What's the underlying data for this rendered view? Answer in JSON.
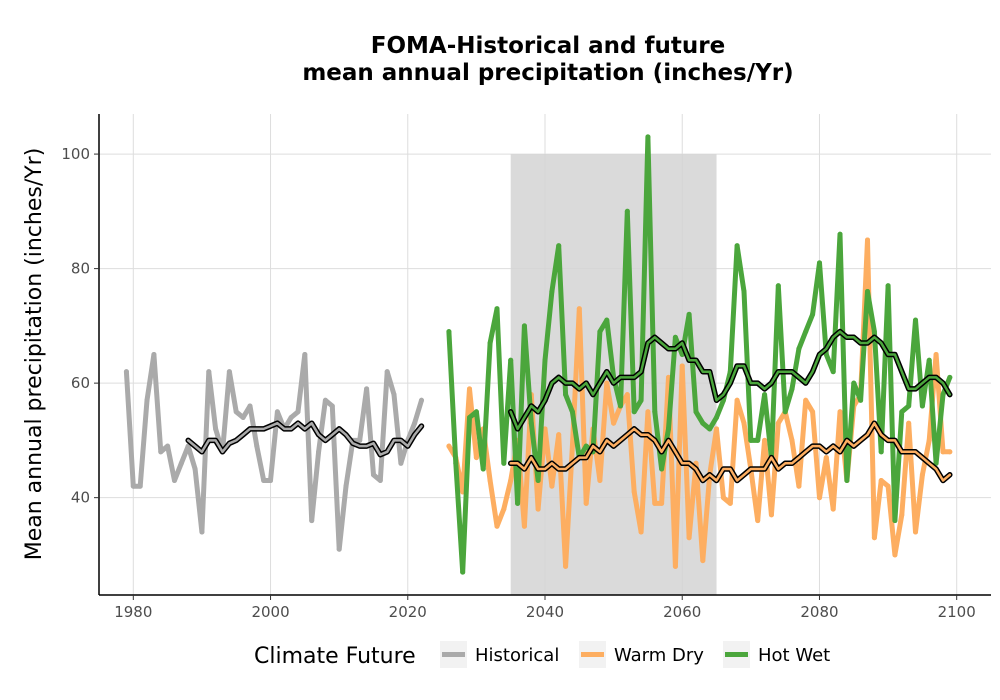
{
  "chart_data": {
    "type": "line",
    "title_line1": "FOMA-Historical and future",
    "title_line2": "mean annual precipitation (inches/Yr)",
    "xlabel": "",
    "ylabel": "Mean annual precipitation (inches/Yr)",
    "xlim": [
      1975,
      2105
    ],
    "ylim": [
      23,
      107
    ],
    "x_ticks": [
      1980,
      2000,
      2020,
      2040,
      2060,
      2080,
      2100
    ],
    "y_ticks": [
      40,
      60,
      80,
      100
    ],
    "grid": true,
    "shaded_period": [
      2035,
      2065
    ],
    "shaded_period_y": [
      23,
      100
    ],
    "legend": {
      "title": "Climate Future",
      "placement": "bottom",
      "entries": [
        {
          "label": "Historical",
          "color": "#aaaaaa"
        },
        {
          "label": "Warm Dry",
          "color": "#fdae61"
        },
        {
          "label": "Hot Wet",
          "color": "#4ba63c"
        }
      ]
    },
    "series": [
      {
        "name": "Historical",
        "color": "#aaaaaa",
        "x": [
          1979,
          1980,
          1981,
          1982,
          1983,
          1984,
          1985,
          1986,
          1987,
          1988,
          1989,
          1990,
          1991,
          1992,
          1993,
          1994,
          1995,
          1996,
          1997,
          1998,
          1999,
          2000,
          2001,
          2002,
          2003,
          2004,
          2005,
          2006,
          2007,
          2008,
          2009,
          2010,
          2011,
          2012,
          2013,
          2014,
          2015,
          2016,
          2017,
          2018,
          2019,
          2020,
          2021,
          2022
        ],
        "values": [
          62,
          42,
          42,
          57,
          65,
          48,
          49,
          43,
          46,
          49,
          45,
          34,
          62,
          52,
          48,
          62,
          55,
          54,
          56,
          49,
          43,
          43,
          55,
          52,
          54,
          55,
          65,
          36,
          48,
          57,
          56,
          31,
          42,
          50,
          50,
          59,
          44,
          43,
          62,
          58,
          46,
          50,
          53,
          57
        ],
        "smooth_x": [
          1988,
          1989,
          1990,
          1991,
          1992,
          1993,
          1994,
          1995,
          1996,
          1997,
          1998,
          1999,
          2000,
          2001,
          2002,
          2003,
          2004,
          2005,
          2006,
          2007,
          2008,
          2009,
          2010,
          2011,
          2012,
          2013,
          2014,
          2015,
          2016,
          2017,
          2018,
          2019,
          2020,
          2021,
          2022
        ],
        "smooth_values": [
          50,
          49,
          48,
          50,
          50,
          48,
          49.5,
          50,
          51,
          52,
          52,
          52,
          52.5,
          53,
          52,
          52,
          53,
          52,
          53,
          51,
          50,
          51,
          52,
          51,
          49.5,
          49,
          49,
          49.5,
          47.5,
          48,
          50,
          50,
          49,
          51,
          52.5
        ]
      },
      {
        "name": "Warm Dry",
        "color": "#fdae61",
        "x": [
          2026,
          2027,
          2028,
          2029,
          2030,
          2031,
          2032,
          2033,
          2034,
          2035,
          2036,
          2037,
          2038,
          2039,
          2040,
          2041,
          2042,
          2043,
          2044,
          2045,
          2046,
          2047,
          2048,
          2049,
          2050,
          2051,
          2052,
          2053,
          2054,
          2055,
          2056,
          2057,
          2058,
          2059,
          2060,
          2061,
          2062,
          2063,
          2064,
          2065,
          2066,
          2067,
          2068,
          2069,
          2070,
          2071,
          2072,
          2073,
          2074,
          2075,
          2076,
          2077,
          2078,
          2079,
          2080,
          2081,
          2082,
          2083,
          2084,
          2085,
          2086,
          2087,
          2088,
          2089,
          2090,
          2091,
          2092,
          2093,
          2094,
          2095,
          2096,
          2097,
          2098,
          2099
        ],
        "values": [
          49,
          47,
          41,
          59,
          47,
          52,
          43,
          35,
          38,
          43,
          50,
          35,
          58,
          38,
          52,
          42,
          51,
          28,
          49,
          73,
          39,
          52,
          43,
          60,
          53,
          56,
          58,
          41,
          34,
          55,
          39,
          39,
          61,
          28,
          63,
          33,
          46,
          29,
          44,
          52,
          40,
          39,
          57,
          53,
          45,
          36,
          50,
          37,
          53,
          55,
          50,
          42,
          57,
          55,
          40,
          47,
          38,
          55,
          43,
          56,
          58,
          85,
          33,
          43,
          42,
          30,
          37,
          53,
          34,
          44,
          50,
          65,
          48,
          48
        ],
        "smooth_x": [
          2035,
          2036,
          2037,
          2038,
          2039,
          2040,
          2041,
          2042,
          2043,
          2044,
          2045,
          2046,
          2047,
          2048,
          2049,
          2050,
          2051,
          2052,
          2053,
          2054,
          2055,
          2056,
          2057,
          2058,
          2059,
          2060,
          2061,
          2062,
          2063,
          2064,
          2065,
          2066,
          2067,
          2068,
          2069,
          2070,
          2071,
          2072,
          2073,
          2074,
          2075,
          2076,
          2077,
          2078,
          2079,
          2080,
          2081,
          2082,
          2083,
          2084,
          2085,
          2086,
          2087,
          2088,
          2089,
          2090,
          2091,
          2092,
          2093,
          2094,
          2095,
          2096,
          2097,
          2098,
          2099
        ],
        "smooth_values": [
          46,
          46,
          45,
          47,
          45,
          45,
          46,
          45,
          45,
          46,
          47,
          47,
          49,
          48,
          50,
          49,
          50,
          51,
          52,
          51,
          51,
          50,
          48,
          50,
          48,
          46,
          46,
          45,
          43,
          44,
          43,
          45,
          45,
          43,
          44,
          45,
          45,
          45,
          47,
          45,
          46,
          46,
          47,
          48,
          49,
          49,
          48,
          49,
          48,
          50,
          49,
          50,
          51,
          53,
          51,
          50,
          50,
          48,
          48,
          48,
          47,
          46,
          45,
          43,
          44
        ]
      },
      {
        "name": "Hot Wet",
        "color": "#4ba63c",
        "x": [
          2026,
          2027,
          2028,
          2029,
          2030,
          2031,
          2032,
          2033,
          2034,
          2035,
          2036,
          2037,
          2038,
          2039,
          2040,
          2041,
          2042,
          2043,
          2044,
          2045,
          2046,
          2047,
          2048,
          2049,
          2050,
          2051,
          2052,
          2053,
          2054,
          2055,
          2056,
          2057,
          2058,
          2059,
          2060,
          2061,
          2062,
          2063,
          2064,
          2065,
          2066,
          2067,
          2068,
          2069,
          2070,
          2071,
          2072,
          2073,
          2074,
          2075,
          2076,
          2077,
          2078,
          2079,
          2080,
          2081,
          2082,
          2083,
          2084,
          2085,
          2086,
          2087,
          2088,
          2089,
          2090,
          2091,
          2092,
          2093,
          2094,
          2095,
          2096,
          2097,
          2098,
          2099
        ],
        "values": [
          69,
          46,
          27,
          54,
          55,
          45,
          67,
          73,
          46,
          64,
          39,
          70,
          53,
          43,
          64,
          76,
          84,
          58,
          55,
          47,
          49,
          48,
          69,
          71,
          61,
          56,
          90,
          55,
          57,
          103,
          55,
          45,
          52,
          68,
          65,
          72,
          55,
          53,
          52,
          54,
          57,
          62,
          84,
          76,
          50,
          50,
          58,
          47,
          77,
          55,
          59,
          66,
          69,
          72,
          81,
          65,
          62,
          86,
          43,
          60,
          57,
          76,
          69,
          48,
          77,
          36,
          55,
          56,
          71,
          56,
          64,
          46,
          58,
          61
        ],
        "smooth_x": [
          2035,
          2036,
          2037,
          2038,
          2039,
          2040,
          2041,
          2042,
          2043,
          2044,
          2045,
          2046,
          2047,
          2048,
          2049,
          2050,
          2051,
          2052,
          2053,
          2054,
          2055,
          2056,
          2057,
          2058,
          2059,
          2060,
          2061,
          2062,
          2063,
          2064,
          2065,
          2066,
          2067,
          2068,
          2069,
          2070,
          2071,
          2072,
          2073,
          2074,
          2075,
          2076,
          2077,
          2078,
          2079,
          2080,
          2081,
          2082,
          2083,
          2084,
          2085,
          2086,
          2087,
          2088,
          2089,
          2090,
          2091,
          2092,
          2093,
          2094,
          2095,
          2096,
          2097,
          2098,
          2099
        ],
        "smooth_values": [
          55,
          52,
          54,
          56,
          55,
          57,
          60,
          61,
          60,
          60,
          59,
          60,
          58,
          60,
          62,
          60,
          61,
          61,
          61,
          62,
          67,
          68,
          67,
          66,
          66,
          67,
          64,
          64,
          62,
          62,
          57,
          58,
          60,
          63,
          63,
          60,
          60,
          59,
          60,
          62,
          62,
          62,
          61,
          60,
          62,
          65,
          66,
          68,
          69,
          68,
          68,
          67,
          67,
          68,
          67,
          65,
          65,
          62,
          59,
          59,
          60,
          61,
          61,
          60,
          58
        ]
      }
    ]
  }
}
